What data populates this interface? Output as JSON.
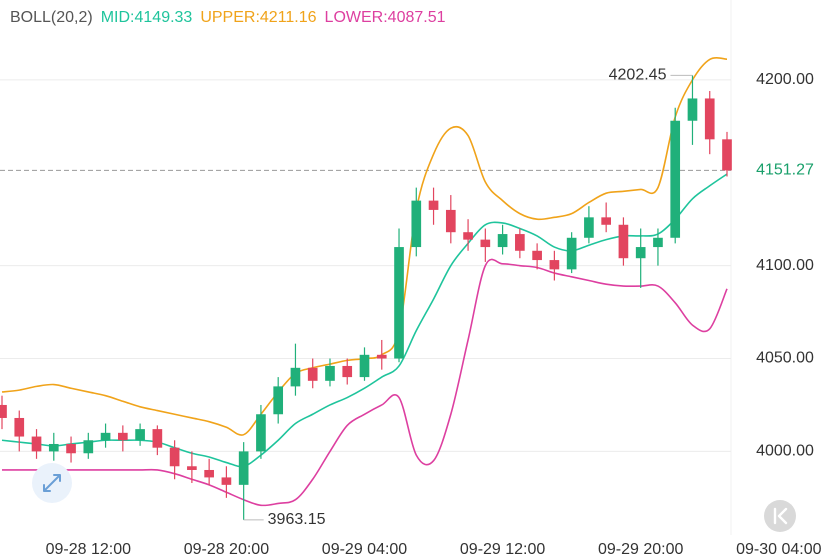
{
  "chart_data": {
    "type": "candlestick",
    "indicator": "BOLL(20,2)",
    "x": [
      "09-28 07:00",
      "09-28 08:00",
      "09-28 09:00",
      "09-28 10:00",
      "09-28 11:00",
      "09-28 12:00",
      "09-28 13:00",
      "09-28 14:00",
      "09-28 15:00",
      "09-28 16:00",
      "09-28 17:00",
      "09-28 18:00",
      "09-28 19:00",
      "09-28 20:00",
      "09-28 21:00",
      "09-28 22:00",
      "09-28 23:00",
      "09-29 00:00",
      "09-29 01:00",
      "09-29 02:00",
      "09-29 03:00",
      "09-29 04:00",
      "09-29 05:00",
      "09-29 06:00",
      "09-29 07:00",
      "09-29 08:00",
      "09-29 09:00",
      "09-29 10:00",
      "09-29 11:00",
      "09-29 12:00",
      "09-29 13:00",
      "09-29 14:00",
      "09-29 15:00",
      "09-29 16:00",
      "09-29 17:00",
      "09-29 18:00",
      "09-29 19:00",
      "09-29 20:00",
      "09-29 21:00",
      "09-29 22:00",
      "09-29 23:00",
      "09-30 00:00",
      "09-30 01:00"
    ],
    "open": [
      4025,
      4018,
      4008,
      4000,
      4004,
      3999,
      4006,
      4010,
      4006,
      4012,
      4002,
      3992,
      3990,
      3986,
      3982,
      4000,
      4020,
      4035,
      4045,
      4038,
      4046,
      4040,
      4052,
      4050,
      4110,
      4135,
      4130,
      4118,
      4114,
      4110,
      4117,
      4108,
      4103,
      4098,
      4115,
      4126,
      4122,
      4104,
      4110,
      4115,
      4178,
      4190,
      4168
    ],
    "high": [
      4030,
      4022,
      4012,
      4010,
      4008,
      4010,
      4015,
      4014,
      4015,
      4014,
      4006,
      4000,
      3996,
      3992,
      4005,
      4025,
      4040,
      4058,
      4050,
      4050,
      4050,
      4056,
      4060,
      4120,
      4142,
      4142,
      4138,
      4125,
      4120,
      4122,
      4120,
      4112,
      4108,
      4118,
      4132,
      4134,
      4126,
      4120,
      4120,
      4185,
      4202.45,
      4194,
      4172
    ],
    "low": [
      4012,
      4000,
      3996,
      3995,
      3994,
      3996,
      4002,
      4000,
      4003,
      3998,
      3985,
      3983,
      3982,
      3975,
      3963.15,
      3996,
      4015,
      4030,
      4034,
      4035,
      4036,
      4038,
      4044,
      4048,
      4105,
      4122,
      4112,
      4108,
      4102,
      4106,
      4104,
      4098,
      4092,
      4096,
      4112,
      4118,
      4100,
      4088,
      4100,
      4112,
      4165,
      4160,
      4148
    ],
    "close": [
      4018,
      4008,
      4000,
      4004,
      3999,
      4006,
      4010,
      4006,
      4012,
      4002,
      3992,
      3990,
      3986,
      3982,
      4000,
      4020,
      4035,
      4045,
      4038,
      4046,
      4040,
      4052,
      4050,
      4110,
      4135,
      4130,
      4118,
      4114,
      4110,
      4117,
      4108,
      4103,
      4098,
      4115,
      4126,
      4122,
      4104,
      4110,
      4115,
      4178,
      4190,
      4168,
      4151.27
    ],
    "up_color": "#20b07a",
    "down_color": "#e2455f",
    "series": [
      {
        "name": "MID:4149.33",
        "color": "#1fc49c",
        "values": [
          4006,
          4005,
          4004,
          4003,
          4004,
          4005,
          4006,
          4006,
          4006,
          4005,
          4002,
          3999,
          3997,
          3994,
          3992,
          3998,
          4006,
          4015,
          4020,
          4025,
          4029,
          4034,
          4040,
          4046,
          4065,
          4082,
          4100,
          4112,
          4122,
          4123,
          4120,
          4116,
          4110,
          4108,
          4111,
          4114,
          4116,
          4116,
          4117,
          4125,
          4136,
          4143,
          4149.33
        ]
      },
      {
        "name": "UPPER:4211.16",
        "color": "#f0a31a",
        "values": [
          4032,
          4033,
          4035,
          4036,
          4034,
          4032,
          4030,
          4027,
          4024,
          4022,
          4020,
          4018,
          4016,
          4013,
          4009,
          4020,
          4032,
          4042,
          4045,
          4047,
          4049,
          4050,
          4052,
          4065,
          4130,
          4160,
          4174,
          4170,
          4145,
          4135,
          4128,
          4125,
          4126,
          4128,
          4134,
          4139,
          4140,
          4141,
          4142,
          4180,
          4200,
          4211,
          4211.16
        ]
      },
      {
        "name": "LOWER:4087.51",
        "color": "#dd3fa0",
        "values": [
          3990,
          3990,
          3990,
          3990,
          3990,
          3990,
          3990,
          3990,
          3990,
          3990,
          3988,
          3985,
          3982,
          3978,
          3974,
          3971,
          3972,
          3974,
          3985,
          4000,
          4014,
          4020,
          4025,
          4029,
          3998,
          3995,
          4020,
          4060,
          4100,
          4101,
          4100,
          4099,
          4096,
          4094,
          4092,
          4090,
          4089,
          4089,
          4089,
          4080,
          4068,
          4066,
          4087.51
        ]
      }
    ],
    "ylim": [
      3955,
      4243
    ],
    "yticks": [
      {
        "value": 4000,
        "label": "4000.00"
      },
      {
        "value": 4050,
        "label": "4050.00"
      },
      {
        "value": 4100,
        "label": "4100.00"
      },
      {
        "value": 4200,
        "label": "4200.00"
      }
    ],
    "xticks": [
      "09-28 12:00",
      "09-28 20:00",
      "09-29 04:00",
      "09-29 12:00",
      "09-29 20:00",
      "09-30 04:00"
    ],
    "last_price": 4151.27,
    "high_annotation": 4202.45,
    "low_annotation": 3963.15,
    "grid": true
  }
}
